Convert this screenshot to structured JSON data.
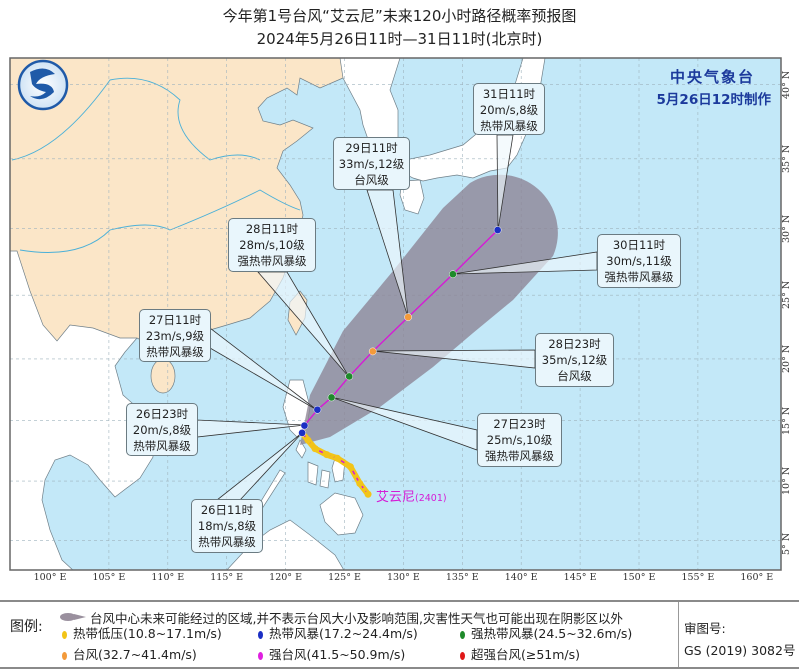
{
  "title": {
    "line1": "今年第1号台风“艾云尼”未来120小时路径概率预报图",
    "line2": "2024年5月26日11时—31日11时(北京时)"
  },
  "agency": {
    "name": "中央气象台",
    "issued": "5月26日12时制作"
  },
  "typhoon_label": {
    "name": "艾云尼",
    "code": "(2401)"
  },
  "colors": {
    "sea": "#c3e8f8",
    "china_land": "#fbe6c8",
    "other_land": "#ffffff",
    "cone": "#8c8394",
    "track_line": "#d51bd5",
    "tropical_depression": "#f2c418",
    "tropical_storm": "#1b2fc4",
    "severe_tropical_storm": "#1e8a2a",
    "typhoon": "#f39a3a",
    "severe_typhoon": "#e020e0",
    "super_typhoon": "#e01818"
  },
  "forecast_points": [
    {
      "time": "26日11时",
      "wind": "18m/s,8级",
      "grade": "热带风暴级",
      "category": "tropical_storm",
      "lon": 121.4,
      "lat": 14.0
    },
    {
      "time": "26日23时",
      "wind": "20m/s,8级",
      "grade": "热带风暴级",
      "category": "tropical_storm",
      "lon": 121.6,
      "lat": 14.6
    },
    {
      "time": "27日11时",
      "wind": "23m/s,9级",
      "grade": "热带风暴级",
      "category": "tropical_storm",
      "lon": 122.7,
      "lat": 15.9
    },
    {
      "time": "27日23时",
      "wind": "25m/s,10级",
      "grade": "强热带风暴级",
      "category": "severe_tropical_storm",
      "lon": 123.9,
      "lat": 16.9
    },
    {
      "time": "28日11时",
      "wind": "28m/s,10级",
      "grade": "强热带风暴级",
      "category": "severe_tropical_storm",
      "lon": 125.4,
      "lat": 18.6
    },
    {
      "time": "28日23时",
      "wind": "35m/s,12级",
      "grade": "台风级",
      "category": "typhoon",
      "lon": 127.4,
      "lat": 20.6
    },
    {
      "time": "29日11时",
      "wind": "33m/s,12级",
      "grade": "台风级",
      "category": "typhoon",
      "lon": 130.4,
      "lat": 23.3
    },
    {
      "time": "30日11时",
      "wind": "30m/s,11级",
      "grade": "强热带风暴级",
      "category": "severe_tropical_storm",
      "lon": 134.2,
      "lat": 26.6
    },
    {
      "time": "31日11时",
      "wind": "20m/s,8级",
      "grade": "热带风暴级",
      "category": "tropical_storm",
      "lon": 138.0,
      "lat": 29.9
    }
  ],
  "past_track": [
    {
      "lon": 127.0,
      "lat": 8.9
    },
    {
      "lon": 126.3,
      "lat": 9.8
    },
    {
      "lon": 125.5,
      "lat": 11.2
    },
    {
      "lon": 124.4,
      "lat": 11.9
    },
    {
      "lon": 123.5,
      "lat": 12.2
    },
    {
      "lon": 122.5,
      "lat": 12.7
    },
    {
      "lon": 121.9,
      "lat": 13.4
    },
    {
      "lon": 121.4,
      "lat": 14.0
    }
  ],
  "axes": {
    "lon_labels": [
      {
        "lon": 100,
        "text": "100° E"
      },
      {
        "lon": 105,
        "text": "105° E"
      },
      {
        "lon": 110,
        "text": "110° E"
      },
      {
        "lon": 115,
        "text": "115° E"
      },
      {
        "lon": 120,
        "text": "120° E"
      },
      {
        "lon": 125,
        "text": "125° E"
      },
      {
        "lon": 130,
        "text": "130° E"
      },
      {
        "lon": 135,
        "text": "135° E"
      },
      {
        "lon": 140,
        "text": "140° E"
      },
      {
        "lon": 145,
        "text": "145° E"
      },
      {
        "lon": 150,
        "text": "150° E"
      },
      {
        "lon": 155,
        "text": "155° E"
      },
      {
        "lon": 160,
        "text": "160° E"
      }
    ],
    "lat_labels": [
      {
        "lat": 40,
        "text": "40° N"
      },
      {
        "lat": 35,
        "text": "35° N"
      },
      {
        "lat": 30,
        "text": "30° N"
      },
      {
        "lat": 25,
        "text": "25° N"
      },
      {
        "lat": 20,
        "text": "20° N"
      },
      {
        "lat": 15,
        "text": "15° N"
      },
      {
        "lat": 10,
        "text": "10° N"
      },
      {
        "lat": 5,
        "text": "5° N"
      }
    ]
  },
  "legend": {
    "title": "图例:",
    "cone_text": "台风中心未来可能经过的区域,并不表示台风大小及影响范围,灾害性天气也可能出现在阴影区以外",
    "items": [
      {
        "category": "tropical_depression",
        "label": "热带低压(10.8~17.1m/s)"
      },
      {
        "category": "tropical_storm",
        "label": "热带风暴(17.2~24.4m/s)"
      },
      {
        "category": "severe_tropical_storm",
        "label": "强热带风暴(24.5~32.6m/s)"
      },
      {
        "category": "typhoon",
        "label": "台风(32.7~41.4m/s)"
      },
      {
        "category": "severe_typhoon",
        "label": "强台风(41.5~50.9m/s)"
      },
      {
        "category": "super_typhoon",
        "label": "超强台风(≥51m/s)"
      }
    ]
  },
  "approval": {
    "label": "审图号:",
    "number": "GS (2019) 3082号"
  }
}
